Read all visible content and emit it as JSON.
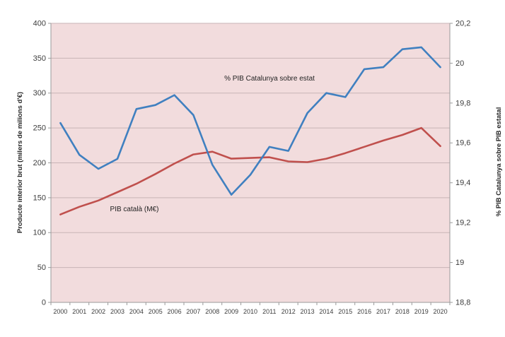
{
  "chart_data": {
    "type": "line",
    "title": "",
    "x": [
      2000,
      2001,
      2002,
      2003,
      2004,
      2005,
      2006,
      2007,
      2008,
      2009,
      2010,
      2011,
      2012,
      2013,
      2014,
      2015,
      2016,
      2017,
      2018,
      2019,
      2020
    ],
    "x_axis": {
      "tick_labels": [
        "2000",
        "2001",
        "2002",
        "2003",
        "2004",
        "2005",
        "2006",
        "2007",
        "2008",
        "2009",
        "2010",
        "2011",
        "2012",
        "2013",
        "2014",
        "2015",
        "2016",
        "2017",
        "2018",
        "2019",
        "2020"
      ]
    },
    "left_axis": {
      "title": "Producte interior brut (milers de milions d'€)",
      "min": 0,
      "max": 400,
      "step": 50,
      "tick_labels": [
        "400",
        "350",
        "300",
        "250",
        "200",
        "150",
        "100",
        "50",
        "0"
      ]
    },
    "right_axis": {
      "title": "% PIB Catalunya sobre PIB estatal",
      "min": 18.8,
      "max": 20.2,
      "step": 0.2,
      "tick_labels": [
        "20,2",
        "20",
        "19,8",
        "19,6",
        "19,4",
        "19,2",
        "19",
        "18,8"
      ]
    },
    "series": [
      {
        "name": "PIB català (M€)",
        "axis": "left",
        "color": "#c0504d",
        "values": [
          126,
          137,
          146,
          158,
          170,
          184,
          199,
          212,
          216,
          206,
          207,
          208,
          202,
          201,
          206,
          214,
          223,
          232,
          240,
          250,
          224
        ]
      },
      {
        "name": "% PIB Catalunya sobre estat",
        "axis": "right",
        "color": "#4080c0",
        "values": [
          19.7,
          19.54,
          19.47,
          19.52,
          19.77,
          19.79,
          19.84,
          19.74,
          19.49,
          19.34,
          19.44,
          19.58,
          19.56,
          19.75,
          19.85,
          19.83,
          19.97,
          19.98,
          20.07,
          20.08,
          19.98
        ]
      }
    ],
    "grid": true,
    "legend_position": "none",
    "plot_bg": "#f2dcdd",
    "gridline_color": "#c8b4b6",
    "axis_line_color": "#9a9a9a"
  }
}
